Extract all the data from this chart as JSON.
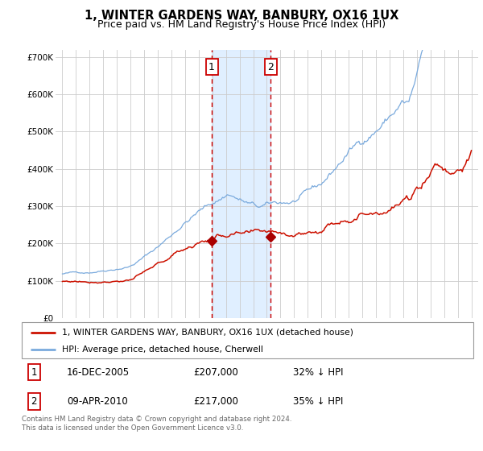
{
  "title": "1, WINTER GARDENS WAY, BANBURY, OX16 1UX",
  "subtitle": "Price paid vs. HM Land Registry's House Price Index (HPI)",
  "hpi_label": "HPI: Average price, detached house, Cherwell",
  "property_label": "1, WINTER GARDENS WAY, BANBURY, OX16 1UX (detached house)",
  "hpi_color": "#7aaadd",
  "property_color": "#cc1100",
  "marker_color": "#aa0000",
  "sale1_date_num": 2005.96,
  "sale1_label": "1",
  "sale1_price": 207000,
  "sale1_pct": "32%",
  "sale1_date_str": "16-DEC-2005",
  "sale2_date_num": 2010.27,
  "sale2_label": "2",
  "sale2_price": 217000,
  "sale2_pct": "35%",
  "sale2_date_str": "09-APR-2010",
  "ylim": [
    0,
    720000
  ],
  "yticks": [
    0,
    100000,
    200000,
    300000,
    400000,
    500000,
    600000,
    700000
  ],
  "ytick_labels": [
    "£0",
    "£100K",
    "£200K",
    "£300K",
    "£400K",
    "£500K",
    "£600K",
    "£700K"
  ],
  "xlim_start": 1994.5,
  "xlim_end": 2025.5,
  "xticks": [
    1995,
    1996,
    1997,
    1998,
    1999,
    2000,
    2001,
    2002,
    2003,
    2004,
    2005,
    2006,
    2007,
    2008,
    2009,
    2010,
    2011,
    2012,
    2013,
    2014,
    2015,
    2016,
    2017,
    2018,
    2019,
    2020,
    2021,
    2022,
    2023,
    2024,
    2025
  ],
  "background_color": "#ffffff",
  "grid_color": "#cccccc",
  "shade_color": "#ddeeff",
  "footer_text": "Contains HM Land Registry data © Crown copyright and database right 2024.\nThis data is licensed under the Open Government Licence v3.0.",
  "title_fontsize": 10.5,
  "subtitle_fontsize": 9,
  "tick_fontsize": 7.5
}
